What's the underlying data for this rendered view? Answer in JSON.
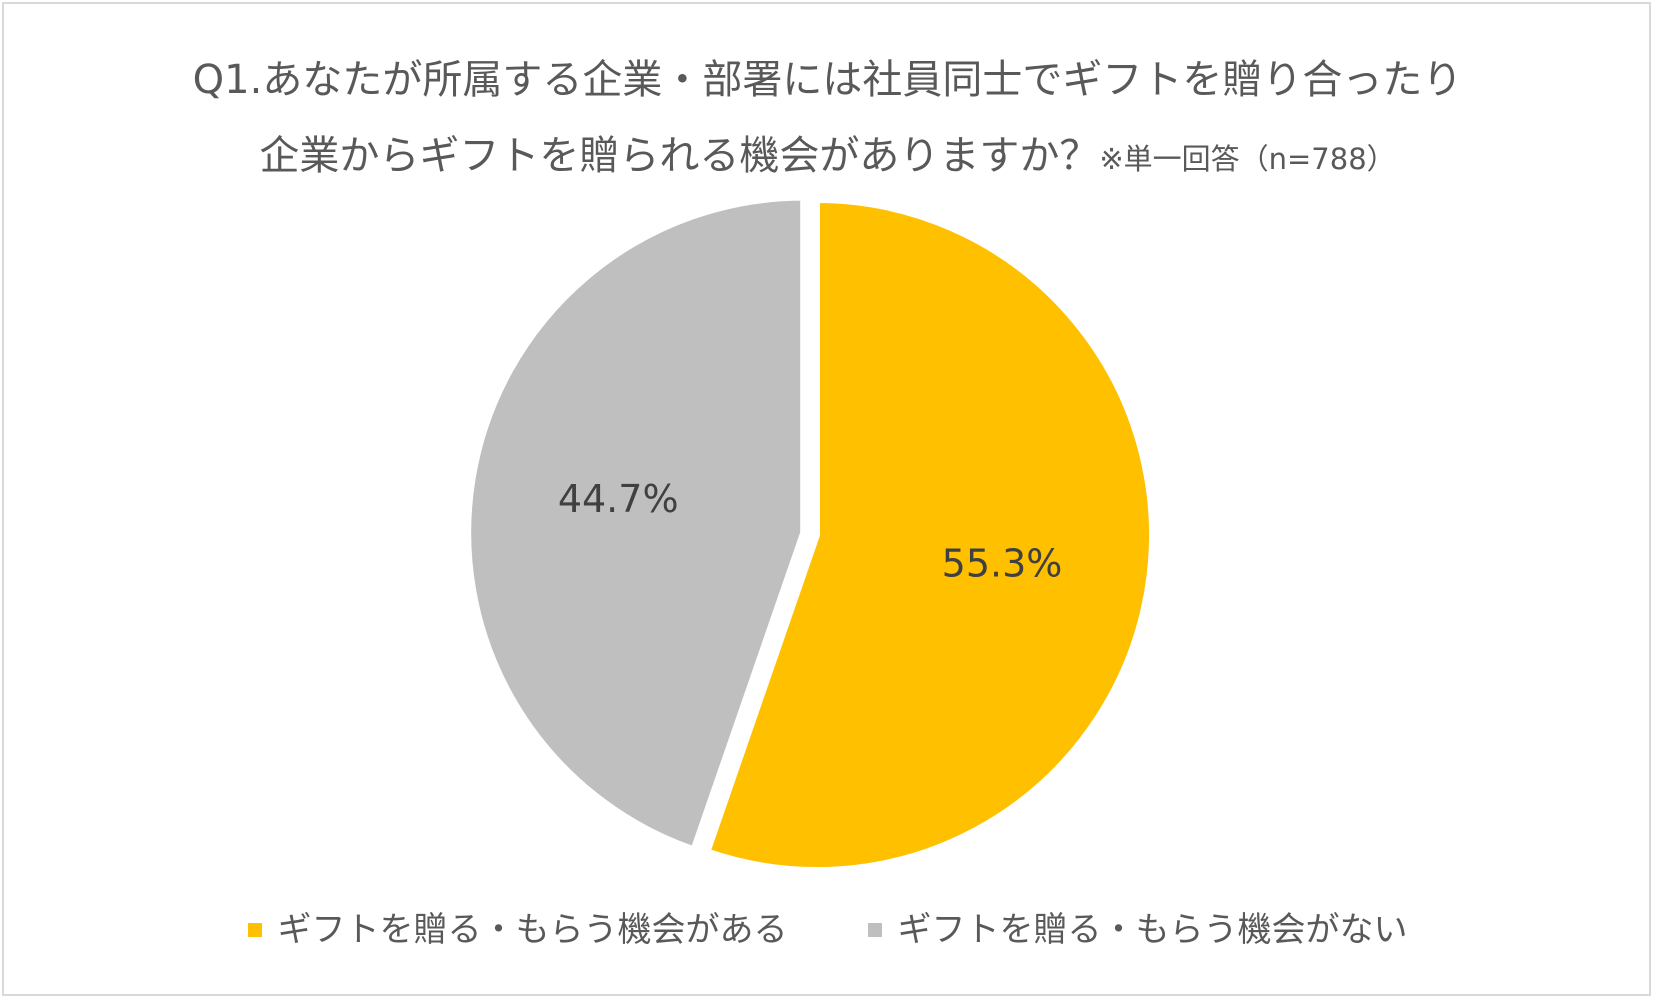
{
  "chart_data": {
    "type": "pie",
    "title_line1": "Q1.あなたが所属する企業・部署には社員同士でギフトを贈り合ったり",
    "title_line2": "企業からギフトを贈られる機会がありますか？",
    "title_note": "※単一回答（n=788）",
    "slices": [
      {
        "name": "ギフトを贈る・もらう機会がある",
        "value": 55.3,
        "label": "55.3%",
        "color": "#FFC000"
      },
      {
        "name": "ギフトを贈る・もらう機会がない",
        "value": 44.7,
        "label": "44.7%",
        "color": "#BFBFBF"
      }
    ],
    "legend_position": "bottom",
    "exploded_slice": "ギフトを贈る・もらう機会がない"
  }
}
